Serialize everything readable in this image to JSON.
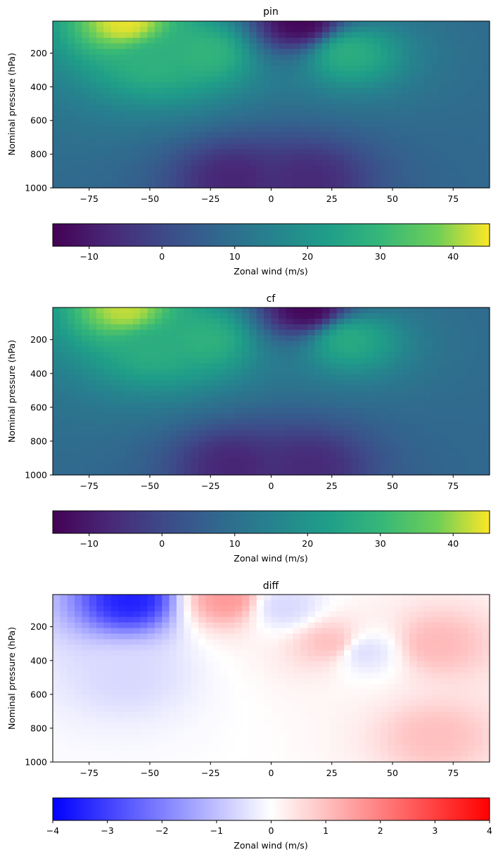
{
  "chart_data": [
    {
      "type": "heatmap",
      "title": "pin",
      "xlabel": "",
      "ylabel": "Nominal pressure (hPa)",
      "xlim": [
        -90,
        90
      ],
      "ylim": [
        1000,
        10
      ],
      "x_ticks": [
        -75,
        -50,
        -25,
        0,
        25,
        50,
        75
      ],
      "y_ticks": [
        200,
        400,
        600,
        800,
        1000
      ],
      "colormap": "viridis",
      "features": [
        {
          "lat": -60,
          "p": 20,
          "value": 44
        },
        {
          "lat": -48,
          "p": 250,
          "value": 28
        },
        {
          "lat": -28,
          "p": 200,
          "value": 29
        },
        {
          "lat": 32,
          "p": 200,
          "value": 27
        },
        {
          "lat": 12,
          "p": 20,
          "value": -14
        },
        {
          "lat": -15,
          "p": 950,
          "value": -8
        },
        {
          "lat": 15,
          "p": 950,
          "value": -7
        }
      ],
      "colorbar": {
        "label": "Zonal wind (m/s)",
        "range": [
          -15,
          45
        ],
        "ticks": [
          -10,
          0,
          10,
          20,
          30,
          40
        ]
      }
    },
    {
      "type": "heatmap",
      "title": "cf",
      "xlabel": "",
      "ylabel": "Nominal pressure (hPa)",
      "xlim": [
        -90,
        90
      ],
      "ylim": [
        1000,
        10
      ],
      "x_ticks": [
        -75,
        -50,
        -25,
        0,
        25,
        50,
        75
      ],
      "y_ticks": [
        200,
        400,
        600,
        800,
        1000
      ],
      "colormap": "viridis",
      "features": [
        {
          "lat": -60,
          "p": 20,
          "value": 42
        },
        {
          "lat": -48,
          "p": 250,
          "value": 27
        },
        {
          "lat": -28,
          "p": 200,
          "value": 28
        },
        {
          "lat": 32,
          "p": 200,
          "value": 26
        },
        {
          "lat": 15,
          "p": 20,
          "value": -14
        },
        {
          "lat": -15,
          "p": 950,
          "value": -8
        },
        {
          "lat": 15,
          "p": 950,
          "value": -7
        }
      ],
      "colorbar": {
        "label": "Zonal wind (m/s)",
        "range": [
          -15,
          45
        ],
        "ticks": [
          -10,
          0,
          10,
          20,
          30,
          40
        ]
      }
    },
    {
      "type": "heatmap",
      "title": "diff",
      "xlabel": "",
      "ylabel": "Nominal pressure (hPa)",
      "xlim": [
        -90,
        90
      ],
      "ylim": [
        1000,
        10
      ],
      "x_ticks": [
        -75,
        -50,
        -25,
        0,
        25,
        50,
        75
      ],
      "y_ticks": [
        200,
        400,
        600,
        800,
        1000
      ],
      "colormap": "bwr",
      "features": [
        {
          "lat": -58,
          "p": 40,
          "value": -3.5
        },
        {
          "lat": -18,
          "p": 40,
          "value": 1.6
        },
        {
          "lat": 25,
          "p": 300,
          "value": 1.0
        },
        {
          "lat": 68,
          "p": 300,
          "value": 1.1
        },
        {
          "lat": 68,
          "p": 850,
          "value": 1.0
        },
        {
          "lat": -60,
          "p": 500,
          "value": -0.6
        },
        {
          "lat": 38,
          "p": 350,
          "value": -0.5
        },
        {
          "lat": 5,
          "p": 80,
          "value": -0.6
        }
      ],
      "colorbar": {
        "label": "Zonal wind (m/s)",
        "range": [
          -4,
          4
        ],
        "ticks": [
          -4,
          -3,
          -2,
          -1,
          0,
          1,
          2,
          3,
          4
        ]
      }
    }
  ]
}
